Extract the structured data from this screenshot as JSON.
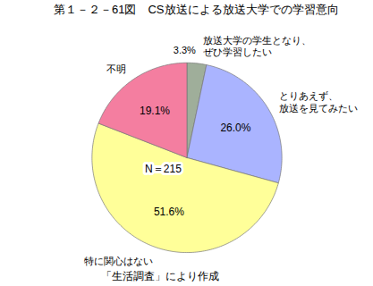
{
  "chart_data": {
    "type": "pie",
    "title": "第１－２－61図　CS放送による放送大学での学習意向",
    "categories": [
      "放送大学の学生となり、\nぜひ学習したい",
      "とりあえず、\n放送を見てみたい",
      "特に関心はない",
      "不明"
    ],
    "values": [
      3.3,
      26.0,
      51.6,
      19.1
    ],
    "value_labels": [
      "3.3%",
      "26.0%",
      "51.6%",
      "19.1%"
    ],
    "colors": [
      "#9fae9a",
      "#aab4ff",
      "#ffff99",
      "#f47ea0"
    ],
    "data_labels": true,
    "annotations": [
      "N＝215"
    ],
    "caption": "「生活調査」により作成"
  }
}
